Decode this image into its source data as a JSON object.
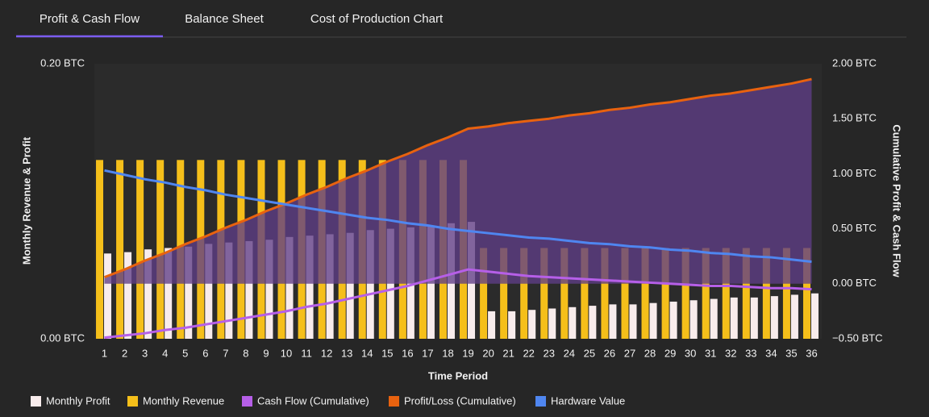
{
  "tabs": [
    "Profit & Cash Flow",
    "Balance Sheet",
    "Cost of Production Chart"
  ],
  "chart_data": {
    "type": "bar",
    "xlabel": "Time Period",
    "ylabel": "Monthly Revenue & Profit",
    "y2label": "Cumulative Profit & Cash Flow",
    "categories": [
      "1",
      "2",
      "3",
      "4",
      "5",
      "6",
      "7",
      "8",
      "9",
      "10",
      "11",
      "12",
      "13",
      "14",
      "15",
      "16",
      "17",
      "18",
      "19",
      "20",
      "21",
      "22",
      "23",
      "24",
      "25",
      "26",
      "27",
      "28",
      "29",
      "30",
      "31",
      "32",
      "33",
      "34",
      "35",
      "36"
    ],
    "ylim": [
      0,
      0.2
    ],
    "yticks": [
      {
        "value": 0,
        "label": "0.00 BTC"
      },
      {
        "value": 0.2,
        "label": "0.20 BTC"
      }
    ],
    "y2lim": [
      -0.5,
      2.0
    ],
    "y2ticks": [
      {
        "value": -0.5,
        "label": "−0.50 BTC"
      },
      {
        "value": 0,
        "label": "0.00 BTC"
      },
      {
        "value": 0.5,
        "label": "0.50 BTC"
      },
      {
        "value": 1.0,
        "label": "1.00 BTC"
      },
      {
        "value": 1.5,
        "label": "1.50 BTC"
      },
      {
        "value": 2.0,
        "label": "2.00 BTC"
      }
    ],
    "grid": false,
    "series": [
      {
        "name": "Monthly Profit",
        "color": "#f8ecec",
        "mark": "bar",
        "values": [
          0.062,
          0.063,
          0.065,
          0.066,
          0.067,
          0.069,
          0.07,
          0.071,
          0.072,
          0.074,
          0.075,
          0.076,
          0.077,
          0.079,
          0.08,
          0.081,
          0.082,
          0.084,
          0.085,
          0.02,
          0.02,
          0.021,
          0.022,
          0.023,
          0.024,
          0.025,
          0.025,
          0.026,
          0.027,
          0.028,
          0.029,
          0.03,
          0.03,
          0.031,
          0.032,
          0.033
        ]
      },
      {
        "name": "Monthly Revenue",
        "color": "#f5bf1a",
        "mark": "bar",
        "values": [
          0.13,
          0.13,
          0.13,
          0.13,
          0.13,
          0.13,
          0.13,
          0.13,
          0.13,
          0.13,
          0.13,
          0.13,
          0.13,
          0.13,
          0.13,
          0.13,
          0.13,
          0.13,
          0.13,
          0.066,
          0.066,
          0.066,
          0.066,
          0.066,
          0.066,
          0.066,
          0.066,
          0.066,
          0.066,
          0.066,
          0.066,
          0.066,
          0.066,
          0.066,
          0.066,
          0.066
        ]
      },
      {
        "name": "Cash Flow (Cumulative)",
        "color": "#b65fe8",
        "mark": "line",
        "axis": "y2",
        "values": [
          -0.49,
          -0.47,
          -0.45,
          -0.42,
          -0.4,
          -0.37,
          -0.34,
          -0.31,
          -0.28,
          -0.25,
          -0.21,
          -0.18,
          -0.14,
          -0.1,
          -0.06,
          -0.02,
          0.03,
          0.08,
          0.13,
          0.11,
          0.09,
          0.07,
          0.06,
          0.05,
          0.04,
          0.03,
          0.02,
          0.01,
          0.0,
          -0.01,
          -0.02,
          -0.02,
          -0.03,
          -0.04,
          -0.04,
          -0.05
        ]
      },
      {
        "name": "Profit/Loss (Cumulative)",
        "color": "#e8620f",
        "mark": "line",
        "axis": "y2",
        "fill": "#5f3d86",
        "values": [
          0.06,
          0.13,
          0.21,
          0.28,
          0.36,
          0.43,
          0.51,
          0.58,
          0.66,
          0.73,
          0.81,
          0.88,
          0.96,
          1.03,
          1.11,
          1.18,
          1.26,
          1.33,
          1.41,
          1.43,
          1.46,
          1.48,
          1.5,
          1.53,
          1.55,
          1.58,
          1.6,
          1.63,
          1.65,
          1.68,
          1.71,
          1.73,
          1.76,
          1.79,
          1.82,
          1.86
        ]
      },
      {
        "name": "Hardware Value",
        "color": "#4f86f0",
        "mark": "line",
        "axis": "y2",
        "values": [
          1.03,
          0.99,
          0.95,
          0.92,
          0.88,
          0.85,
          0.81,
          0.78,
          0.75,
          0.72,
          0.69,
          0.66,
          0.63,
          0.6,
          0.58,
          0.55,
          0.53,
          0.5,
          0.48,
          0.46,
          0.44,
          0.42,
          0.41,
          0.39,
          0.37,
          0.36,
          0.34,
          0.33,
          0.31,
          0.3,
          0.28,
          0.27,
          0.25,
          0.24,
          0.22,
          0.2
        ]
      }
    ]
  }
}
